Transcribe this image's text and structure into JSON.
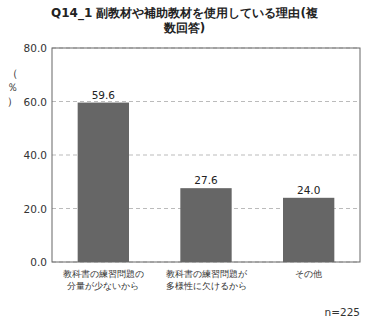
{
  "chart_data": {
    "type": "bar",
    "title": "Q14_1 副教材や補助教材を使用している理由(複\n数回答)",
    "ylabel": "（\n％\n）",
    "categories": [
      "教科書の練習問題の\n分量が少ないから",
      "教科書の練習問題が\n多様性に欠けるから",
      "その他"
    ],
    "values": [
      59.6,
      27.6,
      24.0
    ],
    "value_labels": [
      "59.6",
      "27.6",
      "24.0"
    ],
    "data_labels": true,
    "color": "#666666",
    "ylim": [
      0,
      80
    ],
    "yticks": [
      {
        "value": 0.0,
        "label": "0.0"
      },
      {
        "value": 20.0,
        "label": "20.0"
      },
      {
        "value": 40.0,
        "label": "40.0"
      },
      {
        "value": 60.0,
        "label": "60.0"
      },
      {
        "value": 80.0,
        "label": "80.0"
      }
    ],
    "grid": true,
    "annotation": "n=225"
  }
}
